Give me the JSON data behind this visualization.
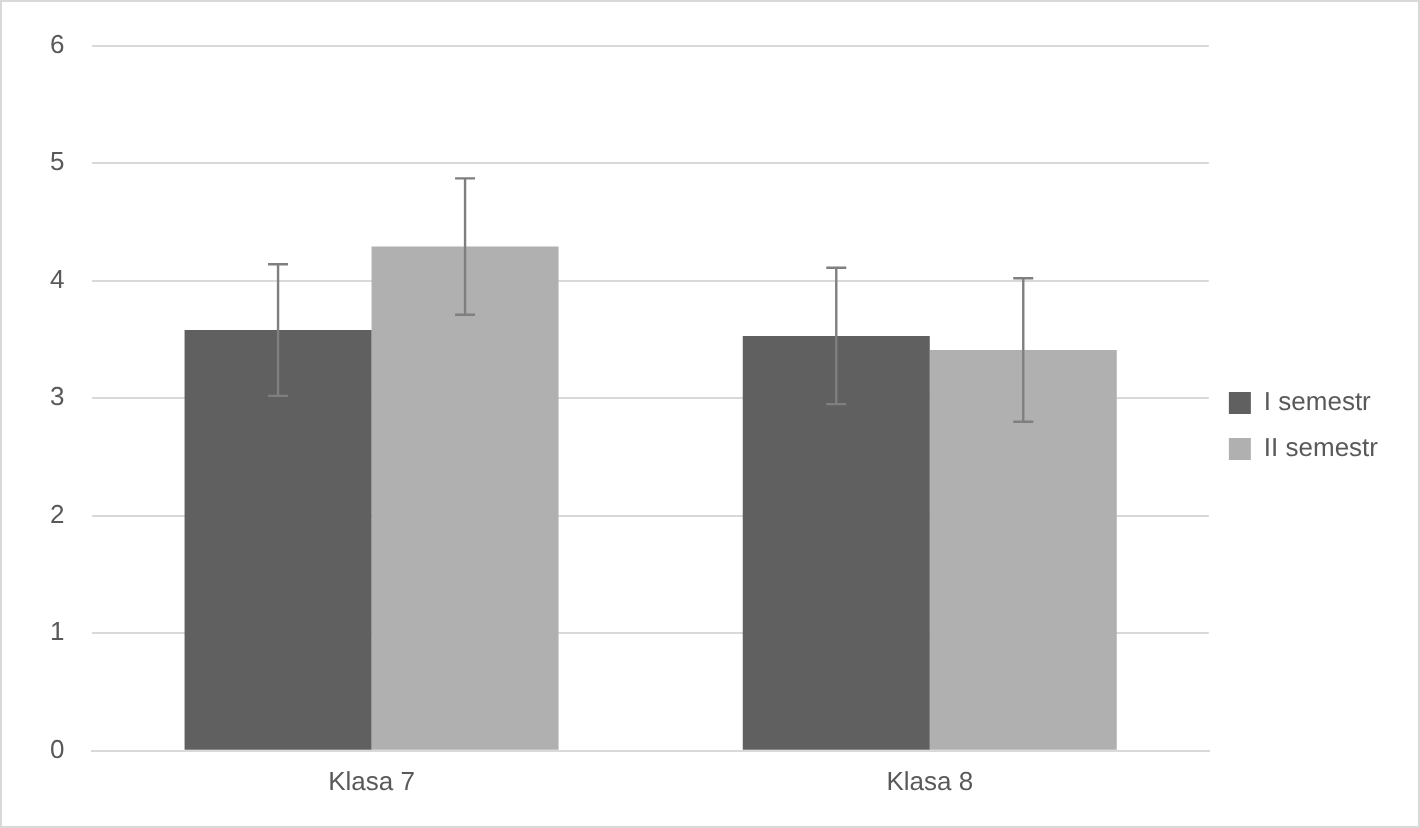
{
  "chart_data": {
    "type": "bar",
    "categories": [
      "Klasa 7",
      "Klasa 8"
    ],
    "series": [
      {
        "name": "I semestr",
        "color": "#606060",
        "values": [
          3.58,
          3.53
        ],
        "errors": [
          0.56,
          0.58
        ]
      },
      {
        "name": "II semestr",
        "color": "#b0b0b0",
        "values": [
          4.29,
          3.41
        ],
        "errors": [
          0.58,
          0.61
        ]
      }
    ],
    "ylim": [
      0,
      6
    ],
    "yticks": [
      0,
      1,
      2,
      3,
      4,
      5,
      6
    ],
    "grid": "y",
    "legend": "right"
  }
}
